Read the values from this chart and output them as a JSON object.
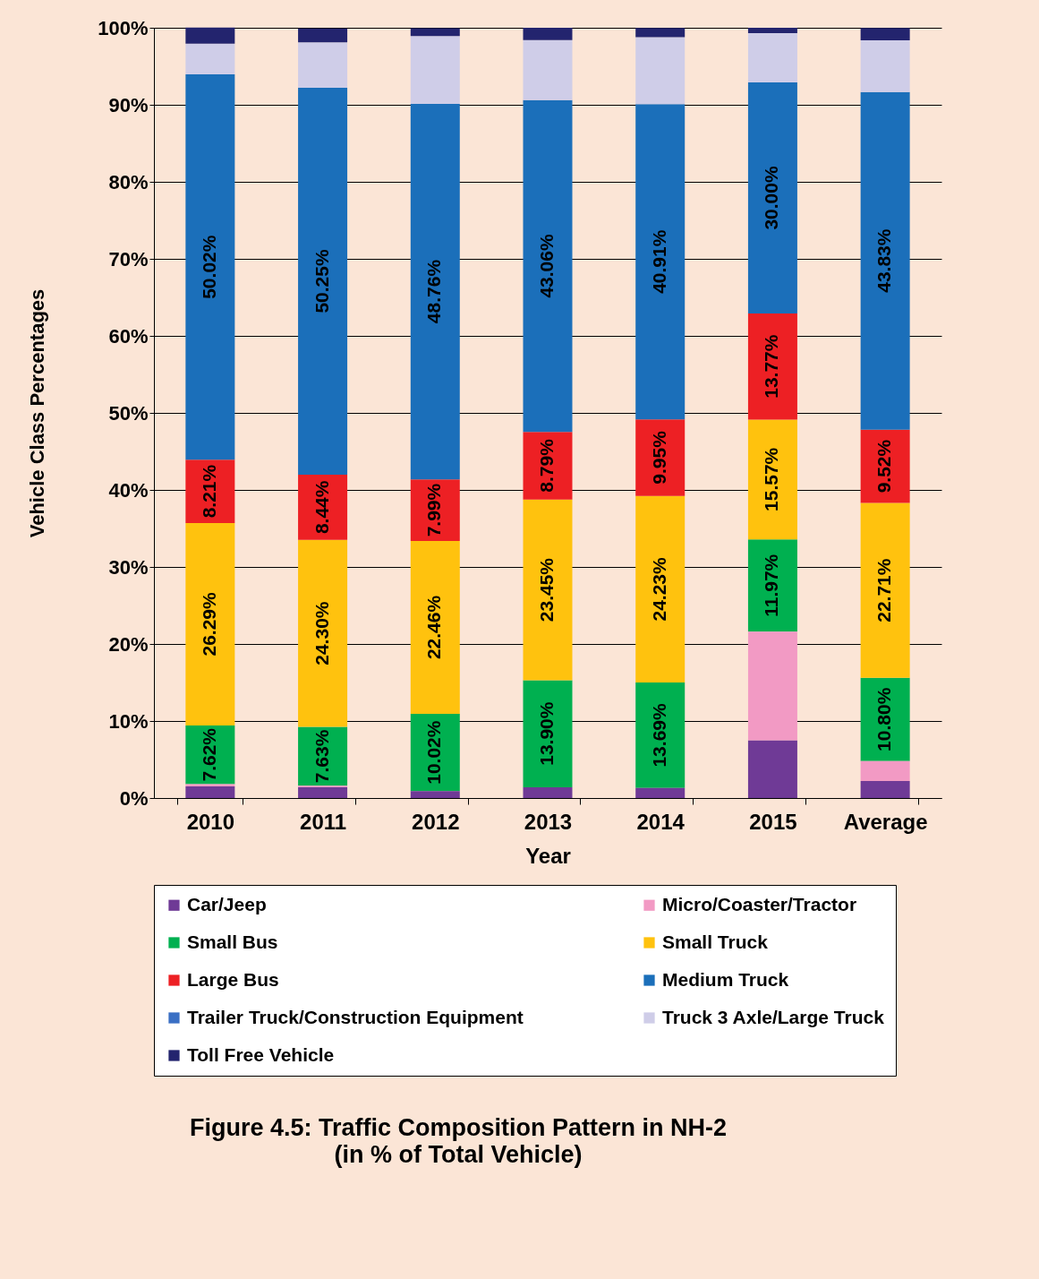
{
  "chart_data": {
    "type": "bar",
    "stacked": true,
    "title": "Figure 4.5: Traffic Composition Pattern in NH-2",
    "subtitle": "(in % of Total Vehicle)",
    "xlabel": "Year",
    "ylabel": "Vehicle Class Percentages",
    "categories": [
      "2010",
      "2011",
      "2012",
      "2013",
      "2014",
      "2015",
      "Average"
    ],
    "ylim": [
      0,
      100
    ],
    "yticks": [
      {
        "value": 0,
        "label": "0%"
      },
      {
        "value": 10,
        "label": "10%"
      },
      {
        "value": 20,
        "label": "20%"
      },
      {
        "value": 30,
        "label": "30%"
      },
      {
        "value": 40,
        "label": "40%"
      },
      {
        "value": 50,
        "label": "50%"
      },
      {
        "value": 60,
        "label": "60%"
      },
      {
        "value": 70,
        "label": "70%"
      },
      {
        "value": 80,
        "label": "80%"
      },
      {
        "value": 90,
        "label": "90%"
      },
      {
        "value": 100,
        "label": "100%"
      }
    ],
    "grid": "y",
    "legend": "bottom",
    "series": [
      {
        "name": "Car/Jeep",
        "color": "#6f3a96",
        "values": [
          1.5,
          1.4,
          0.9,
          1.4,
          1.3,
          7.5,
          2.2
        ]
      },
      {
        "name": "Micro/Coaster/Tractor",
        "color": "#f29ac4",
        "values": [
          0.3,
          0.2,
          null,
          0,
          0,
          14.1,
          2.6
        ]
      },
      {
        "name": "Small Bus",
        "color": "#00b050",
        "values": [
          7.62,
          7.63,
          10.02,
          13.9,
          13.69,
          11.97,
          10.8
        ],
        "value_labels": [
          "7.62%",
          "7.63%",
          "10.02%",
          "13.90%",
          "13.69%",
          "11.97%",
          "10.80%"
        ]
      },
      {
        "name": "Small Truck",
        "color": "#ffc20e",
        "values": [
          26.29,
          24.3,
          22.46,
          23.45,
          24.23,
          15.57,
          22.71
        ],
        "value_labels": [
          "26.29%",
          "24.30%",
          "22.46%",
          "23.45%",
          "24.23%",
          "15.57%",
          "22.71%"
        ]
      },
      {
        "name": "Large Bus",
        "color": "#ed2024",
        "values": [
          8.21,
          8.44,
          7.99,
          8.79,
          9.95,
          13.77,
          9.52
        ],
        "value_labels": [
          "8.21%",
          "8.44%",
          "7.99%",
          "8.79%",
          "9.95%",
          "13.77%",
          "9.52%"
        ]
      },
      {
        "name": "Medium Truck",
        "color": "#1b6fba",
        "values": [
          50.02,
          50.25,
          48.76,
          43.06,
          40.91,
          30.0,
          43.83
        ],
        "value_labels": [
          "50.02%",
          "50.25%",
          "48.76%",
          "43.06%",
          "40.91%",
          "30.00%",
          "43.83%"
        ]
      },
      {
        "name": "Trailer Truck/Construction Equipment",
        "color": "#3a6fc4",
        "values": [
          null,
          null,
          null,
          null,
          null,
          null,
          null
        ]
      },
      {
        "name": "Truck 3 Axle/Large Truck",
        "color": "#cfcde8",
        "values": [
          4.0,
          5.9,
          8.8,
          7.8,
          8.7,
          6.4,
          6.7
        ]
      },
      {
        "name": "Toll Free Vehicle",
        "color": "#23246e",
        "values": [
          2.1,
          1.8,
          1.0,
          1.6,
          1.2,
          0.7,
          1.6
        ]
      }
    ]
  }
}
